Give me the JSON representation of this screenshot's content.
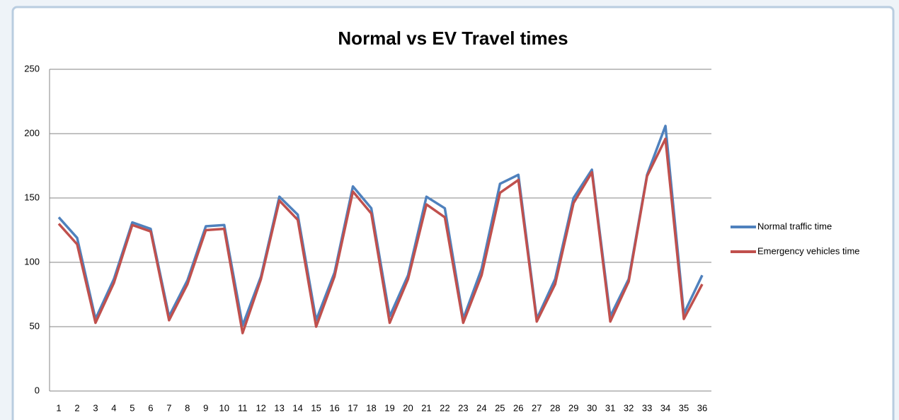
{
  "chart_data": {
    "type": "line",
    "title": "Normal vs EV Travel times",
    "categories": [
      1,
      2,
      3,
      4,
      5,
      6,
      7,
      8,
      9,
      10,
      11,
      12,
      13,
      14,
      15,
      16,
      17,
      18,
      19,
      20,
      21,
      22,
      23,
      24,
      25,
      26,
      27,
      28,
      29,
      30,
      31,
      32,
      33,
      34,
      35,
      36
    ],
    "series": [
      {
        "name": "Normal traffic time",
        "color": "#4f81bd",
        "values": [
          135,
          119,
          56,
          87,
          131,
          126,
          58,
          86,
          128,
          129,
          51,
          89,
          151,
          137,
          55,
          92,
          159,
          142,
          58,
          90,
          151,
          142,
          56,
          95,
          161,
          168,
          56,
          87,
          150,
          172,
          58,
          87,
          168,
          206,
          60,
          90
        ]
      },
      {
        "name": "Emergency vehicles time",
        "color": "#c0504d",
        "values": [
          130,
          114,
          53,
          84,
          129,
          124,
          55,
          83,
          125,
          126,
          45,
          87,
          148,
          133,
          50,
          89,
          155,
          138,
          53,
          87,
          145,
          135,
          53,
          90,
          154,
          164,
          54,
          83,
          146,
          170,
          54,
          85,
          167,
          196,
          56,
          83
        ]
      }
    ],
    "ylim": [
      0,
      250
    ],
    "yticks": [
      0,
      50,
      100,
      150,
      200,
      250
    ],
    "grid": true,
    "legend": "right"
  }
}
